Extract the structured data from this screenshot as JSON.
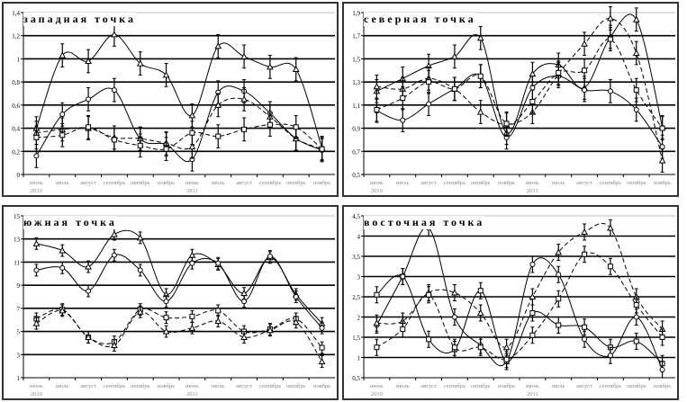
{
  "chart_data": [
    {
      "type": "line",
      "title": "западная точка",
      "categories": [
        "июнь 2010",
        "июль",
        "август",
        "сентябрь",
        "октябрь",
        "ноябрь",
        "июнь 2011",
        "июль",
        "август",
        "сентябрь",
        "октябрь",
        "ноябрь"
      ],
      "yticks": [
        "0",
        "0,2",
        "0,4",
        "0,6",
        "0,8",
        "1",
        "1,2",
        "1,4"
      ],
      "ylim": [
        0,
        1.4
      ],
      "grid": true,
      "error_bar": 0.1,
      "series": [
        {
          "marker": "triangle",
          "dash": false,
          "values": [
            0.4,
            1.03,
            0.98,
            1.21,
            0.96,
            0.86,
            0.51,
            1.11,
            1.02,
            0.93,
            0.91,
            0.23
          ]
        },
        {
          "marker": "circle",
          "dash": false,
          "values": [
            0.16,
            0.52,
            0.65,
            0.73,
            0.31,
            0.26,
            0.13,
            0.71,
            0.72,
            0.53,
            0.31,
            0.21
          ]
        },
        {
          "marker": "triangle",
          "dash": true,
          "values": [
            0.36,
            0.39,
            0.4,
            0.32,
            0.31,
            0.27,
            0.24,
            0.6,
            0.65,
            0.5,
            0.31,
            0.22
          ]
        },
        {
          "marker": "square",
          "dash": true,
          "values": [
            0.32,
            0.34,
            0.41,
            0.3,
            0.25,
            0.22,
            0.36,
            0.33,
            0.39,
            0.43,
            0.41,
            0.22
          ]
        }
      ]
    },
    {
      "type": "line",
      "title": "северная точка",
      "categories": [
        "июнь 2010",
        "июль",
        "август",
        "сентябрь",
        "октябрь",
        "ноябрь",
        "июнь 2011",
        "июль",
        "август",
        "сентябрь",
        "октябрь",
        "ноябрь"
      ],
      "yticks": [
        "0,5",
        "0,7",
        "0,9",
        "1,1",
        "1,3",
        "1,5",
        "1,7",
        "1,9"
      ],
      "ylim": [
        0.5,
        1.9
      ],
      "grid": true,
      "error_bar": 0.1,
      "series": [
        {
          "marker": "triangle",
          "dash": false,
          "values": [
            1.22,
            1.33,
            1.44,
            1.52,
            1.68,
            0.86,
            1.37,
            1.45,
            1.25,
            1.69,
            1.84,
            0.91
          ]
        },
        {
          "marker": "circle",
          "dash": false,
          "values": [
            1.05,
            0.97,
            1.11,
            1.24,
            1.35,
            0.82,
            1.25,
            1.35,
            1.23,
            1.22,
            1.06,
            0.74
          ]
        },
        {
          "marker": "triangle",
          "dash": true,
          "values": [
            1.26,
            1.24,
            1.33,
            1.24,
            1.04,
            0.93,
            1.04,
            1.37,
            1.63,
            1.85,
            1.55,
            0.62
          ]
        },
        {
          "marker": "square",
          "dash": true,
          "values": [
            1.06,
            1.16,
            1.3,
            1.24,
            1.35,
            0.94,
            1.13,
            1.38,
            1.4,
            1.67,
            1.23,
            0.9
          ]
        }
      ]
    },
    {
      "type": "line",
      "title": "южная точка",
      "categories": [
        "июнь 2010",
        "июль",
        "август",
        "сентябрь",
        "октябрь",
        "ноябрь",
        "июнь 2011",
        "июль",
        "август",
        "сентябрь",
        "октябрь",
        "ноябрь"
      ],
      "yticks": [
        "1",
        "3",
        "5",
        "7",
        "9",
        "11",
        "13",
        "15"
      ],
      "ylim": [
        1,
        15
      ],
      "grid": true,
      "error_bar": 0.5,
      "series": [
        {
          "marker": "triangle",
          "dash": false,
          "values": [
            12.6,
            12.0,
            10.6,
            13.4,
            13.1,
            8.2,
            11.6,
            10.8,
            8.3,
            11.4,
            8.2,
            5.7
          ]
        },
        {
          "marker": "circle",
          "dash": false,
          "values": [
            10.3,
            10.5,
            8.5,
            11.6,
            10.3,
            7.6,
            10.9,
            10.9,
            7.6,
            11.5,
            8.0,
            5.3
          ]
        },
        {
          "marker": "square",
          "dash": true,
          "values": [
            6.1,
            6.9,
            4.5,
            4.1,
            6.9,
            6.2,
            6.3,
            6.8,
            5.0,
            5.2,
            6.1,
            3.6
          ]
        },
        {
          "marker": "triangle",
          "dash": true,
          "values": [
            5.7,
            6.8,
            4.5,
            3.8,
            6.7,
            5.0,
            5.3,
            5.9,
            4.5,
            5.1,
            5.8,
            2.4
          ]
        }
      ]
    },
    {
      "type": "line",
      "title": "восточная точка",
      "categories": [
        "июнь 2010",
        "июль",
        "август",
        "сентябрь",
        "октябрь",
        "ноябрь",
        "июнь 2011",
        "июль",
        "август",
        "сентябрь",
        "октябрь",
        "ноябрь"
      ],
      "yticks": [
        "0,5",
        "1",
        "1,5",
        "2",
        "2,5",
        "3",
        "3,5",
        "4",
        "4,5"
      ],
      "ylim": [
        0.5,
        4.5
      ],
      "grid": true,
      "error_bar": 0.2,
      "series": [
        {
          "marker": "square",
          "dash": false,
          "values": [
            2.55,
            3.0,
            1.45,
            1.2,
            2.65,
            0.9,
            2.1,
            1.8,
            1.75,
            1.25,
            1.4,
            0.85
          ]
        },
        {
          "marker": "circle",
          "dash": false,
          "values": [
            1.8,
            3.0,
            4.2,
            2.0,
            1.3,
            0.9,
            3.3,
            3.05,
            1.45,
            1.05,
            2.0,
            0.7
          ]
        },
        {
          "marker": "triangle",
          "dash": true,
          "values": [
            1.85,
            1.9,
            2.6,
            2.6,
            2.1,
            1.25,
            2.5,
            3.6,
            4.1,
            4.2,
            2.5,
            1.7
          ]
        },
        {
          "marker": "square",
          "dash": true,
          "values": [
            1.25,
            1.7,
            2.55,
            1.25,
            1.25,
            0.95,
            1.55,
            2.45,
            3.55,
            3.25,
            2.3,
            1.5
          ]
        }
      ]
    }
  ]
}
